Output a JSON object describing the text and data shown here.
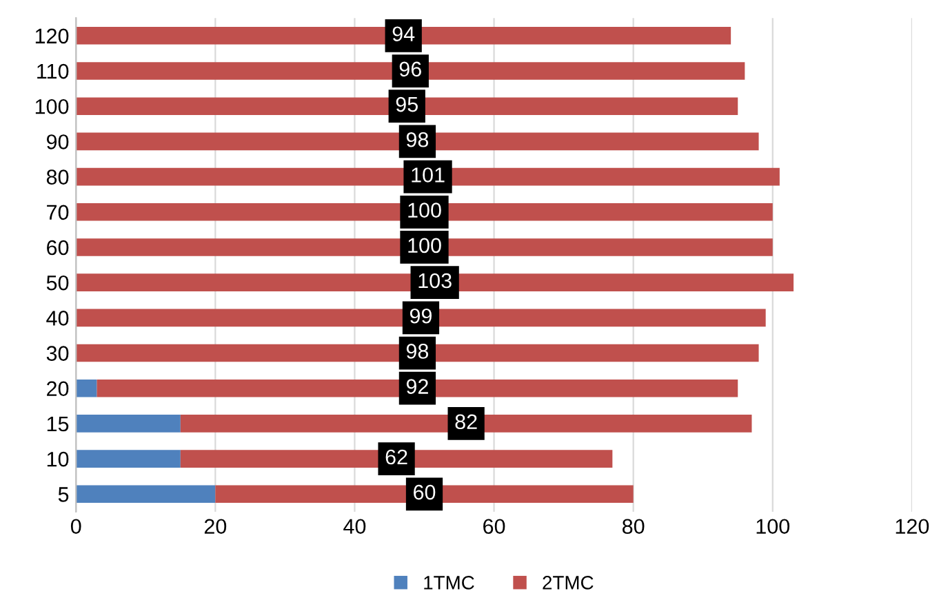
{
  "chart_data": {
    "type": "bar",
    "orientation": "horizontal",
    "stacked": true,
    "categories": [
      "120",
      "110",
      "100",
      "90",
      "80",
      "70",
      "60",
      "50",
      "40",
      "30",
      "20",
      "15",
      "10",
      "5"
    ],
    "series": [
      {
        "name": "1TMC",
        "color": "#4f81bd",
        "values": [
          0,
          0,
          0,
          0,
          0,
          0,
          0,
          0,
          0,
          0,
          3,
          15,
          15,
          20
        ]
      },
      {
        "name": "2TMC",
        "color": "#c0504d",
        "values": [
          94,
          96,
          95,
          98,
          101,
          100,
          100,
          103,
          99,
          98,
          92,
          82,
          62,
          60
        ],
        "value_labels": [
          "94",
          "96",
          "95",
          "98",
          "101",
          "100",
          "100",
          "103",
          "99",
          "98",
          "92",
          "82",
          "62",
          "60"
        ]
      }
    ],
    "xlim": [
      0,
      120
    ],
    "xticks": [
      0,
      20,
      40,
      60,
      80,
      100,
      120
    ],
    "grid": "x",
    "legend": "bottom"
  }
}
